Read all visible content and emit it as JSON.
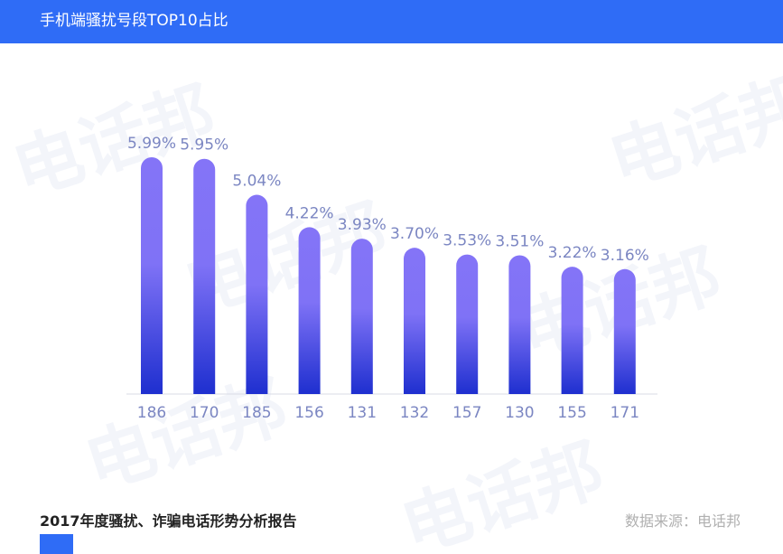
{
  "header": {
    "title": "手机端骚扰号段TOP10占比"
  },
  "watermark": {
    "text": "电话邦"
  },
  "colors": {
    "header_bg": "#2f6cf6",
    "bar_top": "#8474f7",
    "bar_bottom": "#1e2fcf",
    "label": "#7b86c2"
  },
  "chart_data": {
    "type": "bar",
    "categories": [
      "186",
      "170",
      "185",
      "156",
      "131",
      "132",
      "157",
      "130",
      "155",
      "171"
    ],
    "values": [
      5.99,
      5.95,
      5.04,
      4.22,
      3.93,
      3.7,
      3.53,
      3.51,
      3.22,
      3.16
    ],
    "value_labels": [
      "5.99%",
      "5.95%",
      "5.04%",
      "4.22%",
      "3.93%",
      "3.70%",
      "3.53%",
      "3.51%",
      "3.22%",
      "3.16%"
    ],
    "title": "",
    "xlabel": "",
    "ylabel": "",
    "ylim": [
      0,
      6
    ],
    "grid": false,
    "legend": "none"
  },
  "footer": {
    "report_title": "2017年度骚扰、诈骗电话形势分析报告",
    "source": "数据来源：电话邦"
  }
}
